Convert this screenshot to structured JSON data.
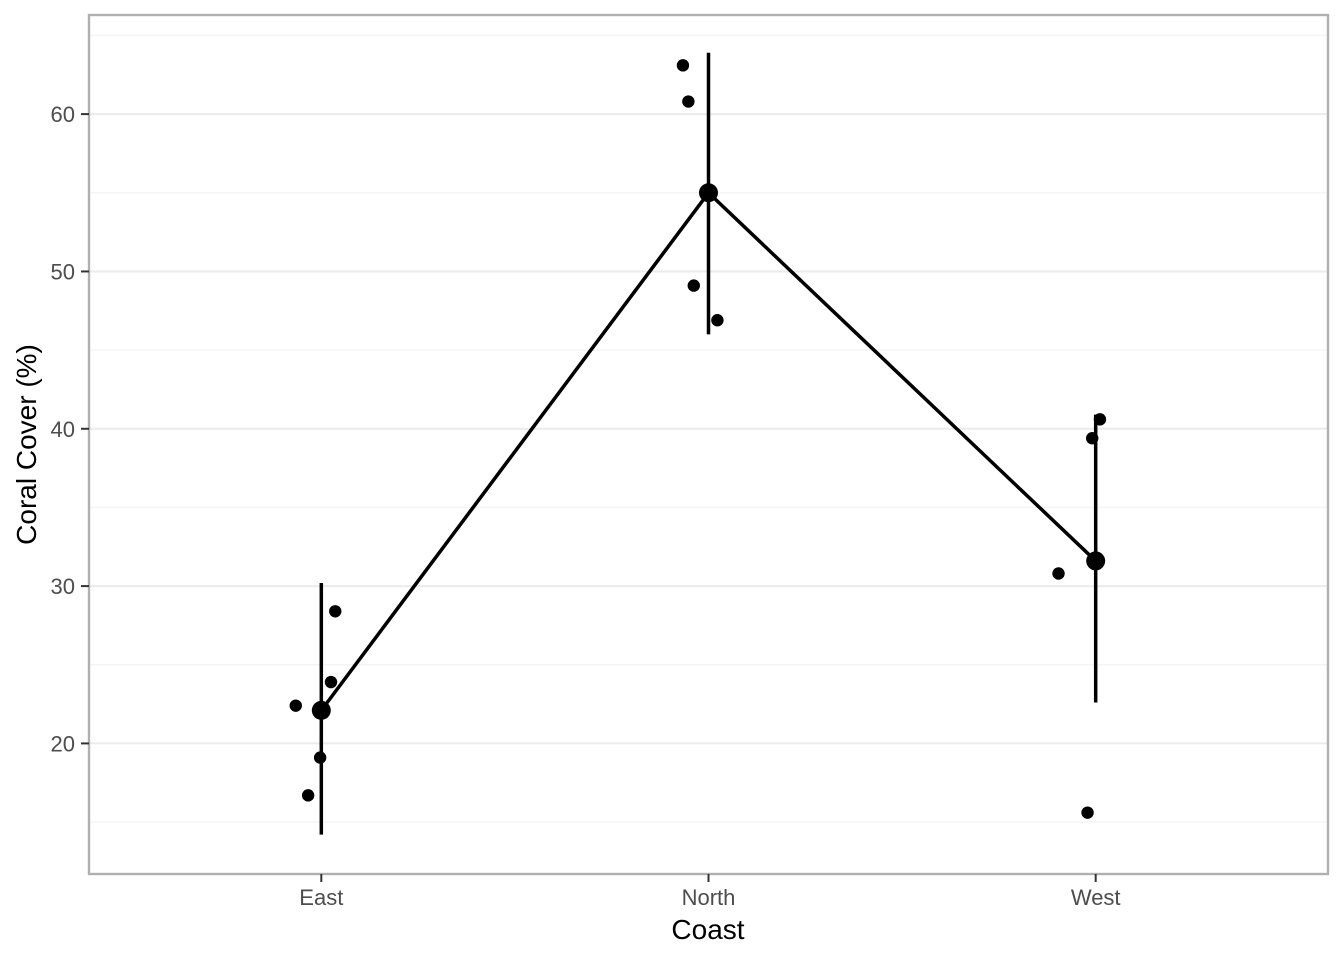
{
  "chart_data": {
    "type": "scatter",
    "title": "",
    "xlabel": "Coast",
    "ylabel": "Coral Cover (%)",
    "categories": [
      "East",
      "North",
      "West"
    ],
    "y_major_ticks": [
      20,
      30,
      40,
      50,
      60
    ],
    "y_minor_ticks": [
      15,
      25,
      35,
      45,
      55,
      65
    ],
    "ylim": [
      11.7,
      66.3
    ],
    "x_expand": 0.6,
    "grid": "on",
    "legend": "none",
    "groups": [
      {
        "name": "East",
        "points": [
          {
            "x_offset": 0.036,
            "y": 28.4
          },
          {
            "x_offset": 0.025,
            "y": 23.9
          },
          {
            "x_offset": -0.066,
            "y": 22.4
          },
          {
            "x_offset": -0.003,
            "y": 19.1
          },
          {
            "x_offset": -0.034,
            "y": 16.7
          }
        ],
        "mean": 22.1,
        "ci_low": 14.2,
        "ci_high": 30.2
      },
      {
        "name": "North",
        "points": [
          {
            "x_offset": -0.066,
            "y": 63.1
          },
          {
            "x_offset": -0.052,
            "y": 60.8
          },
          {
            "x_offset": -0.038,
            "y": 49.1
          },
          {
            "x_offset": 0.023,
            "y": 46.9
          }
        ],
        "mean": 55.0,
        "ci_low": 46.0,
        "ci_high": 63.9
      },
      {
        "name": "West",
        "points": [
          {
            "x_offset": 0.011,
            "y": 40.6
          },
          {
            "x_offset": -0.009,
            "y": 39.4
          },
          {
            "x_offset": -0.096,
            "y": 30.8
          },
          {
            "x_offset": -0.021,
            "y": 15.6
          }
        ],
        "mean": 31.6,
        "ci_low": 22.6,
        "ci_high": 40.9
      }
    ],
    "colors": {
      "point": "#000000",
      "mean_point": "#000000",
      "error_bar": "#000000",
      "mean_line": "#000000",
      "grid_major": "#EBEBEB",
      "grid_minor": "#F4F4F4",
      "panel_border": "#B0B0B0",
      "tick_mark": "#333333",
      "axis_text": "#4D4D4D",
      "axis_title": "#000000",
      "background": "#FFFFFF"
    }
  }
}
